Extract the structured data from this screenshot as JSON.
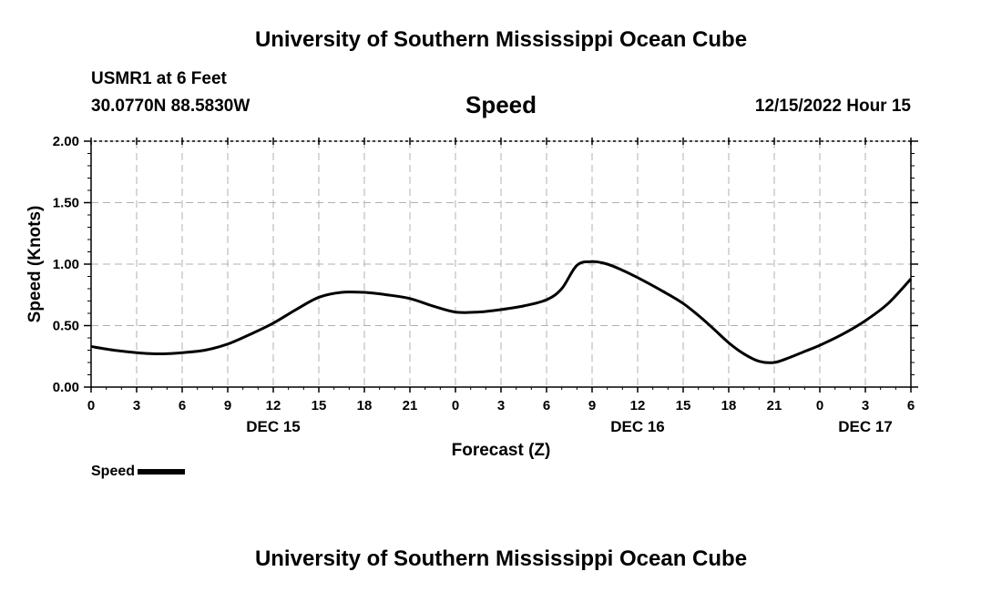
{
  "header": {
    "title": "University of Southern Mississippi Ocean Cube",
    "station": "USMR1 at 6 Feet",
    "coords": "30.0770N  88.5830W",
    "issue_time": "12/15/2022 Hour 15"
  },
  "footer": {
    "title": "University of Southern Mississippi Ocean Cube"
  },
  "legend": {
    "label": "Speed",
    "color": "#000000"
  },
  "chart_data": {
    "type": "line",
    "title": "Speed",
    "xlabel": "Forecast (Z)",
    "ylabel": "Speed (Knots)",
    "xlim": [
      0,
      54
    ],
    "ylim": [
      0,
      2
    ],
    "grid": true,
    "x_ticks": [
      0,
      3,
      6,
      9,
      12,
      15,
      18,
      21,
      24,
      27,
      30,
      33,
      36,
      39,
      42,
      45,
      48,
      51,
      54
    ],
    "x_tick_labels": [
      "0",
      "3",
      "6",
      "9",
      "12",
      "15",
      "18",
      "21",
      "0",
      "3",
      "6",
      "9",
      "12",
      "15",
      "18",
      "21",
      "0",
      "3",
      "6"
    ],
    "y_ticks": [
      0,
      0.5,
      1.0,
      1.5,
      2.0
    ],
    "y_tick_labels": [
      "0.00",
      "0.50",
      "1.00",
      "1.50",
      "2.00"
    ],
    "day_labels": [
      {
        "x": 12,
        "label": "DEC 15"
      },
      {
        "x": 36,
        "label": "DEC 16"
      },
      {
        "x": 51,
        "label": "DEC 17"
      }
    ],
    "series": [
      {
        "name": "Speed",
        "color": "#000000",
        "x": [
          0,
          1.5,
          3,
          4.5,
          6,
          7.5,
          9,
          10.5,
          12,
          13.5,
          15,
          16.5,
          18,
          19.5,
          21,
          22.5,
          24,
          25.5,
          27,
          28.5,
          30,
          31,
          32,
          33,
          34,
          35,
          36,
          37.5,
          39,
          40.5,
          42,
          43,
          44,
          45,
          46,
          47,
          48,
          49.5,
          51,
          52.5,
          54
        ],
        "y": [
          0.33,
          0.3,
          0.28,
          0.27,
          0.28,
          0.3,
          0.35,
          0.43,
          0.52,
          0.63,
          0.73,
          0.77,
          0.77,
          0.75,
          0.72,
          0.66,
          0.61,
          0.61,
          0.63,
          0.66,
          0.71,
          0.8,
          0.99,
          1.02,
          1.0,
          0.95,
          0.89,
          0.79,
          0.68,
          0.53,
          0.36,
          0.27,
          0.21,
          0.2,
          0.24,
          0.29,
          0.34,
          0.43,
          0.54,
          0.68,
          0.88
        ]
      }
    ]
  }
}
